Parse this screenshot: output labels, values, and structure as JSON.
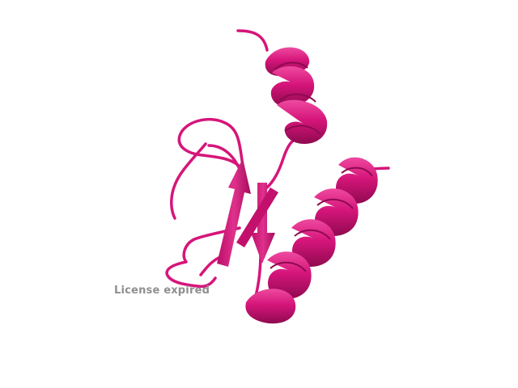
{
  "scene": {
    "subject": "protein-cartoon",
    "color": "#d6157a",
    "color_dark": "#9c0c57",
    "color_light": "#ee4aa0",
    "background": "#ffffff"
  },
  "watermark": {
    "text": "License expired",
    "color": "#8f8f8f"
  }
}
